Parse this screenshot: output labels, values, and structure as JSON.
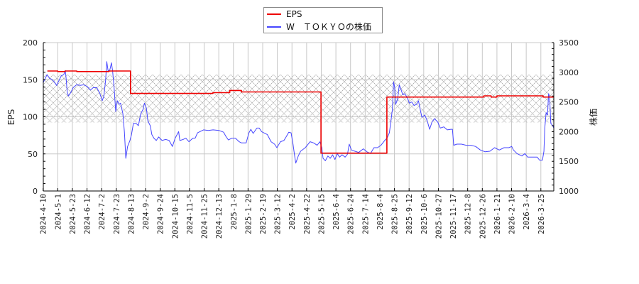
{
  "legend": {
    "items": [
      {
        "label": "EPS",
        "color": "#ee0000"
      },
      {
        "label": "W　ＴＯＫＹＯの株価",
        "color": "#4646ff"
      }
    ]
  },
  "axes": {
    "left_label": "EPS",
    "right_label": "株価"
  },
  "colors": {
    "grid": "#c8c8c8",
    "axis": "#000000",
    "hatch": "#a0a0a0"
  },
  "chart_data": {
    "type": "line",
    "title": "",
    "xlabel": "",
    "ylabel": "EPS",
    "y2label": "株価",
    "ylim": [
      0,
      200
    ],
    "y2lim": [
      1000,
      3500
    ],
    "yticks": [
      0,
      50,
      100,
      150,
      200
    ],
    "y2ticks": [
      1000,
      1500,
      2000,
      2500,
      3000,
      3500
    ],
    "y_minor_step": 10,
    "y2_minor_step": 100,
    "grid": true,
    "legend_position": "top-center",
    "hatched_band_eps_range": [
      92,
      157
    ],
    "categories": [
      "2024-4-10",
      "2024-5-1",
      "2024-5-23",
      "2024-6-12",
      "2024-7-2",
      "2024-7-23",
      "2024-8-13",
      "2024-9-2",
      "2024-9-24",
      "2024-10-15",
      "2024-11-5",
      "2024-11-25",
      "2024-12-13",
      "2025-1-8",
      "2025-1-29",
      "2025-2-19",
      "2025-3-12",
      "2025-4-2",
      "2025-4-22",
      "2025-5-15",
      "2025-6-4",
      "2025-6-24",
      "2025-7-14",
      "2025-8-4",
      "2025-8-25",
      "2025-9-12",
      "2025-10-6",
      "2025-10-27",
      "2025-11-17",
      "2025-12-8",
      "2025-12-26",
      "2026-1-21",
      "2026-2-10",
      "2026-3-4",
      "2026-3-25"
    ],
    "x_note": "points are [t, value] where t is the fractional index into categories",
    "series": [
      {
        "name": "W　ＴＯＫＹＯの株価",
        "axis": "right",
        "color": "#4646ff",
        "points": [
          [
            0,
            2820
          ],
          [
            0.11,
            2880
          ],
          [
            0.27,
            2960
          ],
          [
            0.44,
            2900
          ],
          [
            0.6,
            2880
          ],
          [
            0.76,
            2840
          ],
          [
            0.92,
            2780
          ],
          [
            1.08,
            2860
          ],
          [
            1.24,
            2940
          ],
          [
            1.41,
            2960
          ],
          [
            1.52,
            3030
          ],
          [
            1.57,
            2900
          ],
          [
            1.65,
            2660
          ],
          [
            1.73,
            2600
          ],
          [
            1.89,
            2660
          ],
          [
            2.05,
            2740
          ],
          [
            2.29,
            2790
          ],
          [
            2.54,
            2780
          ],
          [
            2.78,
            2790
          ],
          [
            3.02,
            2760
          ],
          [
            3.23,
            2700
          ],
          [
            3.42,
            2740
          ],
          [
            3.67,
            2740
          ],
          [
            3.88,
            2640
          ],
          [
            4.04,
            2520
          ],
          [
            4.15,
            2600
          ],
          [
            4.27,
            2860
          ],
          [
            4.35,
            3180
          ],
          [
            4.44,
            3020
          ],
          [
            4.56,
            3040
          ],
          [
            4.67,
            3160
          ],
          [
            4.75,
            3020
          ],
          [
            4.85,
            2740
          ],
          [
            4.96,
            2340
          ],
          [
            5.07,
            2520
          ],
          [
            5.2,
            2460
          ],
          [
            5.29,
            2480
          ],
          [
            5.45,
            2300
          ],
          [
            5.56,
            1980
          ],
          [
            5.65,
            1550
          ],
          [
            5.77,
            1750
          ],
          [
            5.93,
            1850
          ],
          [
            6.04,
            1950
          ],
          [
            6.17,
            2140
          ],
          [
            6.35,
            2140
          ],
          [
            6.51,
            2100
          ],
          [
            6.67,
            2300
          ],
          [
            6.84,
            2380
          ],
          [
            6.92,
            2480
          ],
          [
            7.05,
            2400
          ],
          [
            7.16,
            2180
          ],
          [
            7.32,
            2100
          ],
          [
            7.43,
            1950
          ],
          [
            7.57,
            1890
          ],
          [
            7.73,
            1850
          ],
          [
            7.89,
            1910
          ],
          [
            8.13,
            1850
          ],
          [
            8.37,
            1870
          ],
          [
            8.61,
            1850
          ],
          [
            8.83,
            1750
          ],
          [
            9.02,
            1890
          ],
          [
            9.26,
            2000
          ],
          [
            9.34,
            1850
          ],
          [
            9.58,
            1870
          ],
          [
            9.75,
            1890
          ],
          [
            9.96,
            1830
          ],
          [
            10.23,
            1890
          ],
          [
            10.39,
            1890
          ],
          [
            10.55,
            1980
          ],
          [
            10.96,
            2030
          ],
          [
            11.28,
            2020
          ],
          [
            11.61,
            2030
          ],
          [
            12.01,
            2020
          ],
          [
            12.33,
            1990
          ],
          [
            12.49,
            1920
          ],
          [
            12.66,
            1860
          ],
          [
            12.9,
            1890
          ],
          [
            13.14,
            1890
          ],
          [
            13.39,
            1830
          ],
          [
            13.55,
            1810
          ],
          [
            13.87,
            1810
          ],
          [
            14.06,
            1980
          ],
          [
            14.19,
            2040
          ],
          [
            14.35,
            1970
          ],
          [
            14.6,
            2060
          ],
          [
            14.76,
            2060
          ],
          [
            14.92,
            2000
          ],
          [
            15.08,
            1980
          ],
          [
            15.32,
            1950
          ],
          [
            15.57,
            1830
          ],
          [
            15.81,
            1790
          ],
          [
            15.97,
            1730
          ],
          [
            16.21,
            1830
          ],
          [
            16.45,
            1850
          ],
          [
            16.62,
            1920
          ],
          [
            16.78,
            1990
          ],
          [
            16.94,
            1980
          ],
          [
            17.07,
            1790
          ],
          [
            17.18,
            1590
          ],
          [
            17.26,
            1470
          ],
          [
            17.43,
            1590
          ],
          [
            17.59,
            1670
          ],
          [
            17.91,
            1730
          ],
          [
            18.24,
            1830
          ],
          [
            18.48,
            1810
          ],
          [
            18.72,
            1770
          ],
          [
            18.91,
            1830
          ],
          [
            19.04,
            1730
          ],
          [
            19.12,
            1550
          ],
          [
            19.28,
            1510
          ],
          [
            19.45,
            1590
          ],
          [
            19.61,
            1550
          ],
          [
            19.77,
            1610
          ],
          [
            19.93,
            1530
          ],
          [
            20.09,
            1630
          ],
          [
            20.25,
            1570
          ],
          [
            20.42,
            1610
          ],
          [
            20.63,
            1570
          ],
          [
            20.79,
            1620
          ],
          [
            20.91,
            1790
          ],
          [
            21.06,
            1690
          ],
          [
            21.3,
            1670
          ],
          [
            21.55,
            1650
          ],
          [
            21.87,
            1710
          ],
          [
            22.12,
            1660
          ],
          [
            22.36,
            1630
          ],
          [
            22.6,
            1730
          ],
          [
            22.84,
            1730
          ],
          [
            23.08,
            1770
          ],
          [
            23.33,
            1850
          ],
          [
            23.49,
            1890
          ],
          [
            23.65,
            1980
          ],
          [
            23.76,
            2180
          ],
          [
            23.86,
            2380
          ],
          [
            23.94,
            2840
          ],
          [
            24.02,
            2740
          ],
          [
            24.08,
            2460
          ],
          [
            24.21,
            2540
          ],
          [
            24.33,
            2790
          ],
          [
            24.46,
            2700
          ],
          [
            24.57,
            2620
          ],
          [
            24.7,
            2640
          ],
          [
            24.86,
            2580
          ],
          [
            25.02,
            2480
          ],
          [
            25.18,
            2500
          ],
          [
            25.34,
            2440
          ],
          [
            25.51,
            2460
          ],
          [
            25.64,
            2520
          ],
          [
            25.75,
            2380
          ],
          [
            25.88,
            2240
          ],
          [
            26.07,
            2280
          ],
          [
            26.24,
            2180
          ],
          [
            26.4,
            2040
          ],
          [
            26.56,
            2160
          ],
          [
            26.73,
            2220
          ],
          [
            26.96,
            2160
          ],
          [
            27.13,
            2060
          ],
          [
            27.37,
            2080
          ],
          [
            27.61,
            2030
          ],
          [
            27.85,
            2040
          ],
          [
            27.96,
            2040
          ],
          [
            28.05,
            1770
          ],
          [
            28.26,
            1790
          ],
          [
            28.58,
            1790
          ],
          [
            28.9,
            1770
          ],
          [
            29.22,
            1770
          ],
          [
            29.55,
            1750
          ],
          [
            29.87,
            1690
          ],
          [
            30.19,
            1660
          ],
          [
            30.52,
            1670
          ],
          [
            30.84,
            1730
          ],
          [
            31.16,
            1690
          ],
          [
            31.49,
            1730
          ],
          [
            31.81,
            1730
          ],
          [
            32.01,
            1750
          ],
          [
            32.13,
            1690
          ],
          [
            32.37,
            1630
          ],
          [
            32.7,
            1590
          ],
          [
            32.91,
            1630
          ],
          [
            33.1,
            1570
          ],
          [
            33.43,
            1570
          ],
          [
            33.75,
            1570
          ],
          [
            33.91,
            1520
          ],
          [
            34.11,
            1520
          ],
          [
            34.21,
            1670
          ],
          [
            34.27,
            2060
          ],
          [
            34.36,
            2320
          ],
          [
            34.45,
            2280
          ],
          [
            34.53,
            2640
          ],
          [
            34.6,
            2560
          ],
          [
            34.68,
            2140
          ],
          [
            34.81,
            2100
          ],
          [
            34.89,
            2060
          ]
        ]
      },
      {
        "name": "EPS",
        "axis": "left",
        "color": "#ee0000",
        "points": [
          [
            0.29,
            161.7
          ],
          [
            1.0,
            161.7
          ],
          [
            1.0,
            161
          ],
          [
            1.5,
            161
          ],
          [
            1.5,
            161.7
          ],
          [
            2.3,
            161.7
          ],
          [
            2.3,
            161
          ],
          [
            4.5,
            161
          ],
          [
            4.5,
            161.7
          ],
          [
            5.97,
            161.7
          ],
          [
            5.97,
            131.5
          ],
          [
            11.6,
            131.5
          ],
          [
            11.6,
            132.5
          ],
          [
            12.75,
            132.5
          ],
          [
            12.75,
            135.5
          ],
          [
            13.55,
            135.5
          ],
          [
            13.55,
            133.5
          ],
          [
            18.98,
            133.5
          ],
          [
            18.98,
            51
          ],
          [
            23.48,
            51
          ],
          [
            23.48,
            126.6
          ],
          [
            30.1,
            126.6
          ],
          [
            30.1,
            128.2
          ],
          [
            30.6,
            128.2
          ],
          [
            30.6,
            126.6
          ],
          [
            31.0,
            126.6
          ],
          [
            31.0,
            128.2
          ],
          [
            34.15,
            128.2
          ],
          [
            34.15,
            126.6
          ],
          [
            34.89,
            126.6
          ]
        ]
      }
    ]
  }
}
